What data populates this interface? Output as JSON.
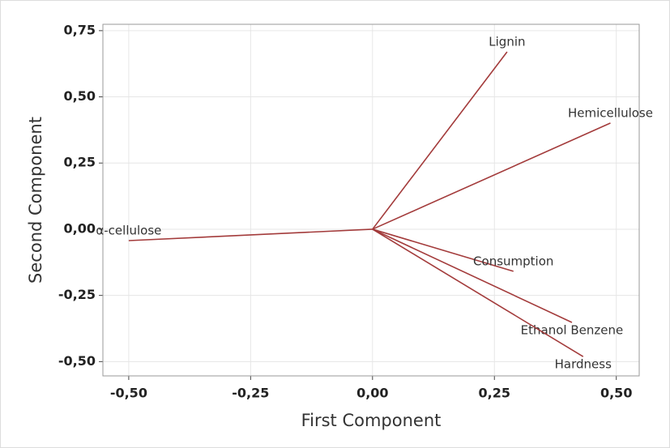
{
  "chart_data": {
    "type": "loading",
    "xlabel": "First Component",
    "ylabel": "Second Component",
    "labels": [
      "Lignin",
      "Hemicellulose",
      "α-cellulose",
      "Consumption",
      "Ethanol Benzene",
      "Hardness"
    ],
    "x": [
      0.276,
      0.488,
      -0.5,
      0.289,
      0.409,
      0.432
    ],
    "values": [
      0.67,
      0.401,
      -0.043,
      -0.159,
      -0.352,
      -0.481
    ],
    "color": "#a33b3b",
    "xlim": [
      -0.553,
      0.547
    ],
    "ylim": [
      -0.554,
      0.774
    ],
    "xticks": [
      {
        "value": -0.5,
        "label": "-0,50"
      },
      {
        "value": -0.25,
        "label": "-0,25"
      },
      {
        "value": 0,
        "label": "0,00"
      },
      {
        "value": 0.25,
        "label": "0,25"
      },
      {
        "value": 0.5,
        "label": "0,50"
      }
    ],
    "yticks": [
      {
        "value": -0.5,
        "label": "-0,50"
      },
      {
        "value": -0.25,
        "label": "-0,25"
      },
      {
        "value": 0,
        "label": "0,00"
      },
      {
        "value": 0.25,
        "label": "0,25"
      },
      {
        "value": 0.5,
        "label": "0,50"
      },
      {
        "value": 0.75,
        "label": "0,75"
      }
    ],
    "grid": true
  }
}
